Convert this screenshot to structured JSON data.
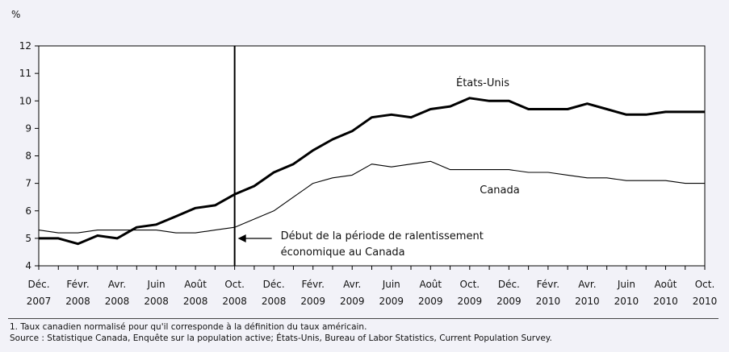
{
  "footnotes": {
    "note1": "1. Taux canadien normalisé pour qu'il corresponde à la définition du taux américain.",
    "source": "Source : Statistique Canada, Enquête sur la population active; États-Unis, Bureau of Labor Statistics, Current Population Survey."
  },
  "chart_data": {
    "type": "line",
    "ylabel": "%",
    "ylim": [
      4,
      12
    ],
    "yticks": [
      "4",
      "5",
      "6",
      "7",
      "8",
      "9",
      "10",
      "11",
      "12"
    ],
    "x_tick_labels": [
      [
        "Déc.",
        "2007"
      ],
      [
        "Févr.",
        "2008"
      ],
      [
        "Avr.",
        "2008"
      ],
      [
        "Juin",
        "2008"
      ],
      [
        "Août",
        "2008"
      ],
      [
        "Oct.",
        "2008"
      ],
      [
        "Déc.",
        "2008"
      ],
      [
        "Févr.",
        "2009"
      ],
      [
        "Avr.",
        "2009"
      ],
      [
        "Juin",
        "2009"
      ],
      [
        "Août",
        "2009"
      ],
      [
        "Oct.",
        "2009"
      ],
      [
        "Déc.",
        "2009"
      ],
      [
        "Févr.",
        "2010"
      ],
      [
        "Avr.",
        "2010"
      ],
      [
        "Juin",
        "2010"
      ],
      [
        "Août",
        "2010"
      ],
      [
        "Oct.",
        "2010"
      ]
    ],
    "x": [
      "2007-12",
      "2008-01",
      "2008-02",
      "2008-03",
      "2008-04",
      "2008-05",
      "2008-06",
      "2008-07",
      "2008-08",
      "2008-09",
      "2008-10",
      "2008-11",
      "2008-12",
      "2009-01",
      "2009-02",
      "2009-03",
      "2009-04",
      "2009-05",
      "2009-06",
      "2009-07",
      "2009-08",
      "2009-09",
      "2009-10",
      "2009-11",
      "2009-12",
      "2010-01",
      "2010-02",
      "2010-03",
      "2010-04",
      "2010-05",
      "2010-06",
      "2010-07",
      "2010-08",
      "2010-09",
      "2010-10"
    ],
    "series": [
      {
        "name": "États-Unis",
        "color": "#000000",
        "values": [
          5.0,
          5.0,
          4.8,
          5.1,
          5.0,
          5.4,
          5.5,
          5.8,
          6.1,
          6.2,
          6.6,
          6.9,
          7.4,
          7.7,
          8.2,
          8.6,
          8.9,
          9.4,
          9.5,
          9.4,
          9.7,
          9.8,
          10.1,
          10.0,
          10.0,
          9.7,
          9.7,
          9.7,
          9.9,
          9.7,
          9.5,
          9.5,
          9.6,
          9.6,
          9.6
        ]
      },
      {
        "name": "Canada",
        "color": "#000000",
        "values": [
          5.3,
          5.2,
          5.2,
          5.3,
          5.3,
          5.3,
          5.3,
          5.2,
          5.2,
          5.3,
          5.4,
          5.7,
          6.0,
          6.5,
          7.0,
          7.2,
          7.3,
          7.7,
          7.6,
          7.7,
          7.8,
          7.5,
          7.5,
          7.5,
          7.5,
          7.4,
          7.4,
          7.3,
          7.2,
          7.2,
          7.1,
          7.1,
          7.1,
          7.0,
          7.0
        ]
      }
    ],
    "annotation": {
      "x": "2008-10",
      "text_line1": "Début de la période de ralentissement",
      "text_line2": "économique au Canada"
    },
    "grid": false
  }
}
